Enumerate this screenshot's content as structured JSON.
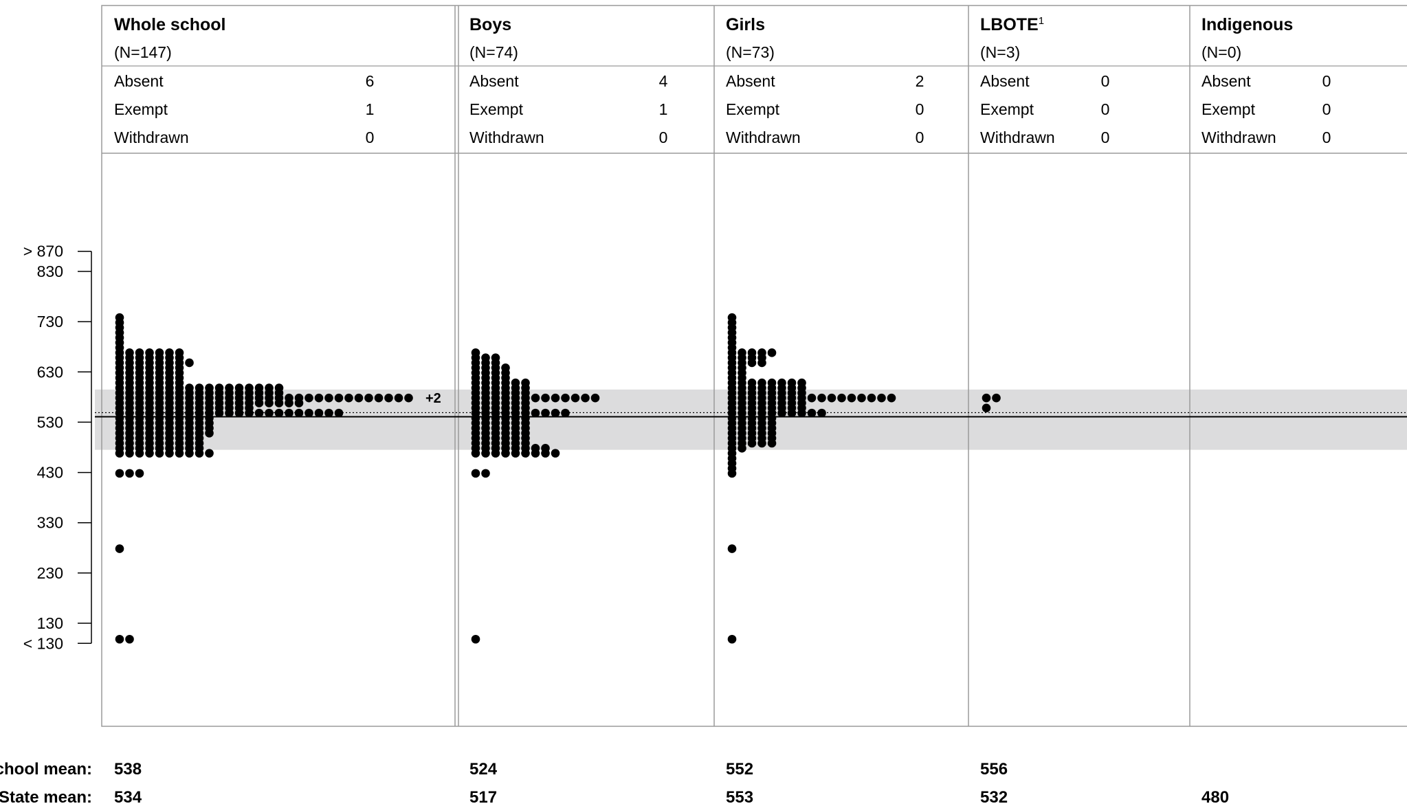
{
  "chart_data": {
    "type": "scatter",
    "subtype": "dot-distribution",
    "y_ticks": [
      "> 870",
      "830",
      "730",
      "630",
      "530",
      "430",
      "330",
      "230",
      "130",
      "< 130"
    ],
    "state_band": {
      "low": 475,
      "high": 595
    },
    "groups": [
      {
        "id": "whole",
        "title": "Whole school",
        "superscript": "",
        "n_label": "(N=147)",
        "stats": [
          {
            "label": "Absent",
            "value": "6"
          },
          {
            "label": "Exempt",
            "value": "1"
          },
          {
            "label": "Withdrawn",
            "value": "0"
          }
        ],
        "school_mean": "538",
        "state_mean": "534",
        "school_mean_value": 538,
        "state_mean_value": 534,
        "overflow_label": "+2",
        "dot_rows": [
          {
            "score": 730,
            "count": 1
          },
          {
            "score": 720,
            "count": 1
          },
          {
            "score": 710,
            "count": 1
          },
          {
            "score": 700,
            "count": 1
          },
          {
            "score": 690,
            "count": 1
          },
          {
            "score": 680,
            "count": 1
          },
          {
            "score": 670,
            "count": 1
          },
          {
            "score": 660,
            "count": 7
          },
          {
            "score": 650,
            "count": 7
          },
          {
            "score": 640,
            "count": 8
          },
          {
            "score": 630,
            "count": 7
          },
          {
            "score": 620,
            "count": 7
          },
          {
            "score": 610,
            "count": 7
          },
          {
            "score": 600,
            "count": 7
          },
          {
            "score": 590,
            "count": 17
          },
          {
            "score": 580,
            "count": 17
          },
          {
            "score": 570,
            "count": 30
          },
          {
            "score": 560,
            "count": 19
          },
          {
            "score": 550,
            "count": 14
          },
          {
            "score": 540,
            "count": 23
          },
          {
            "score": 530,
            "count": 10
          },
          {
            "score": 520,
            "count": 10
          },
          {
            "score": 510,
            "count": 10
          },
          {
            "score": 500,
            "count": 10
          },
          {
            "score": 490,
            "count": 9
          },
          {
            "score": 480,
            "count": 9
          },
          {
            "score": 470,
            "count": 9
          },
          {
            "score": 460,
            "count": 10
          },
          {
            "score": 420,
            "count": 3
          },
          {
            "score": 270,
            "count": 1
          },
          {
            "score": 90,
            "count": 2
          }
        ]
      },
      {
        "id": "boys",
        "title": "Boys",
        "superscript": "",
        "n_label": "(N=74)",
        "stats": [
          {
            "label": "Absent",
            "value": "4"
          },
          {
            "label": "Exempt",
            "value": "1"
          },
          {
            "label": "Withdrawn",
            "value": "0"
          }
        ],
        "school_mean": "524",
        "state_mean": "517",
        "school_mean_value": 524,
        "state_mean_value": 517,
        "overflow_label": "",
        "dot_rows": [
          {
            "score": 660,
            "count": 1
          },
          {
            "score": 650,
            "count": 3
          },
          {
            "score": 640,
            "count": 3
          },
          {
            "score": 630,
            "count": 4
          },
          {
            "score": 620,
            "count": 4
          },
          {
            "score": 610,
            "count": 4
          },
          {
            "score": 600,
            "count": 6
          },
          {
            "score": 590,
            "count": 6
          },
          {
            "score": 580,
            "count": 6
          },
          {
            "score": 570,
            "count": 13
          },
          {
            "score": 560,
            "count": 6
          },
          {
            "score": 550,
            "count": 6
          },
          {
            "score": 540,
            "count": 10
          },
          {
            "score": 530,
            "count": 6
          },
          {
            "score": 520,
            "count": 6
          },
          {
            "score": 510,
            "count": 6
          },
          {
            "score": 500,
            "count": 6
          },
          {
            "score": 490,
            "count": 6
          },
          {
            "score": 480,
            "count": 6
          },
          {
            "score": 470,
            "count": 8
          },
          {
            "score": 460,
            "count": 9
          },
          {
            "score": 420,
            "count": 2
          },
          {
            "score": 90,
            "count": 1
          }
        ]
      },
      {
        "id": "girls",
        "title": "Girls",
        "superscript": "",
        "n_label": "(N=73)",
        "stats": [
          {
            "label": "Absent",
            "value": "2"
          },
          {
            "label": "Exempt",
            "value": "0"
          },
          {
            "label": "Withdrawn",
            "value": "0"
          }
        ],
        "school_mean": "552",
        "state_mean": "553",
        "school_mean_value": 552,
        "state_mean_value": 553,
        "overflow_label": "",
        "dot_rows": [
          {
            "score": 730,
            "count": 1
          },
          {
            "score": 720,
            "count": 1
          },
          {
            "score": 710,
            "count": 1
          },
          {
            "score": 700,
            "count": 1
          },
          {
            "score": 690,
            "count": 1
          },
          {
            "score": 680,
            "count": 1
          },
          {
            "score": 670,
            "count": 1
          },
          {
            "score": 660,
            "count": 5
          },
          {
            "score": 650,
            "count": 4
          },
          {
            "score": 640,
            "count": 4
          },
          {
            "score": 630,
            "count": 2
          },
          {
            "score": 620,
            "count": 2
          },
          {
            "score": 610,
            "count": 2
          },
          {
            "score": 600,
            "count": 8
          },
          {
            "score": 590,
            "count": 8
          },
          {
            "score": 580,
            "count": 8
          },
          {
            "score": 570,
            "count": 17
          },
          {
            "score": 560,
            "count": 8
          },
          {
            "score": 550,
            "count": 8
          },
          {
            "score": 540,
            "count": 10
          },
          {
            "score": 530,
            "count": 5
          },
          {
            "score": 520,
            "count": 5
          },
          {
            "score": 510,
            "count": 5
          },
          {
            "score": 500,
            "count": 5
          },
          {
            "score": 490,
            "count": 5
          },
          {
            "score": 480,
            "count": 5
          },
          {
            "score": 470,
            "count": 2
          },
          {
            "score": 460,
            "count": 1
          },
          {
            "score": 450,
            "count": 1
          },
          {
            "score": 440,
            "count": 1
          },
          {
            "score": 430,
            "count": 1
          },
          {
            "score": 420,
            "count": 1
          },
          {
            "score": 270,
            "count": 1
          },
          {
            "score": 90,
            "count": 1
          }
        ]
      },
      {
        "id": "lbote",
        "title": "LBOTE",
        "superscript": "1",
        "n_label": "(N=3)",
        "stats": [
          {
            "label": "Absent",
            "value": "0"
          },
          {
            "label": "Exempt",
            "value": "0"
          },
          {
            "label": "Withdrawn",
            "value": "0"
          }
        ],
        "school_mean": "556",
        "state_mean": "532",
        "school_mean_value": 556,
        "state_mean_value": 532,
        "overflow_label": "",
        "dot_rows": [
          {
            "score": 570,
            "count": 2
          },
          {
            "score": 550,
            "count": 1
          }
        ]
      },
      {
        "id": "indigenous",
        "title": "Indigenous",
        "superscript": "",
        "n_label": "(N=0)",
        "stats": [
          {
            "label": "Absent",
            "value": "0"
          },
          {
            "label": "Exempt",
            "value": "0"
          },
          {
            "label": "Withdrawn",
            "value": "0"
          }
        ],
        "school_mean": "",
        "state_mean": "480",
        "school_mean_value": null,
        "state_mean_value": 480,
        "overflow_label": "",
        "dot_rows": []
      }
    ],
    "footer": {
      "school_mean_label": "School mean:",
      "state_mean_label": "State mean:"
    }
  }
}
